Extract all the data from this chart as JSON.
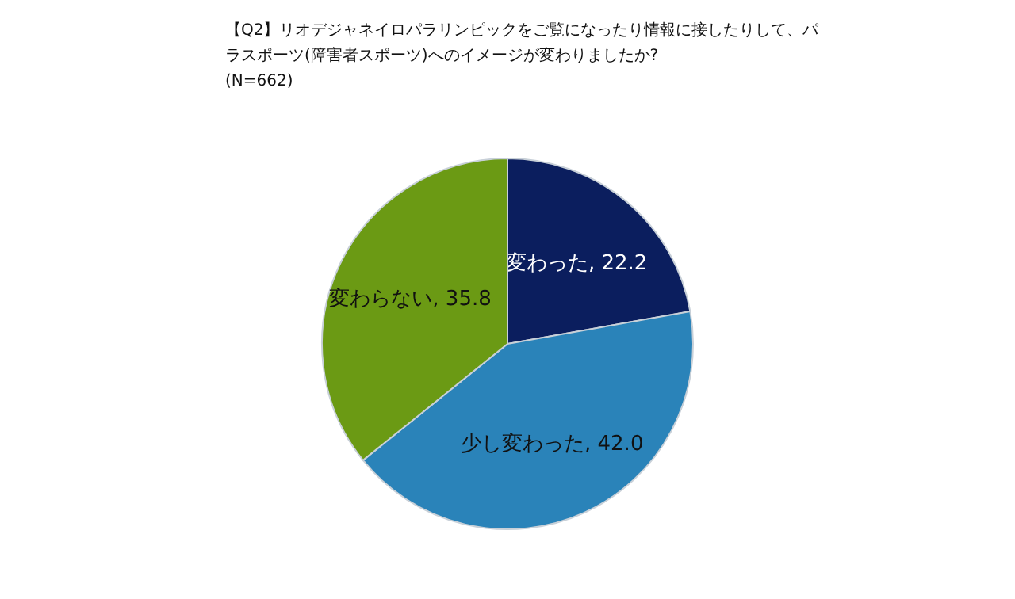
{
  "chart_data": {
    "type": "pie",
    "title": "【Q2】リオデジャネイロパラリンピックをご覧になったり情報に接したりして、パラスポーツ(障害者スポーツ)へのイメージが変わりましたか?",
    "subtitle": "(N=662)",
    "categories": [
      "変わった",
      "少し変わった",
      "変わらない"
    ],
    "values": [
      22.2,
      42.0,
      35.8
    ],
    "value_labels": [
      "22.2",
      "42.0",
      "35.8"
    ],
    "colors": [
      "#0b1e5e",
      "#2a83b9",
      "#6b9a14"
    ]
  }
}
